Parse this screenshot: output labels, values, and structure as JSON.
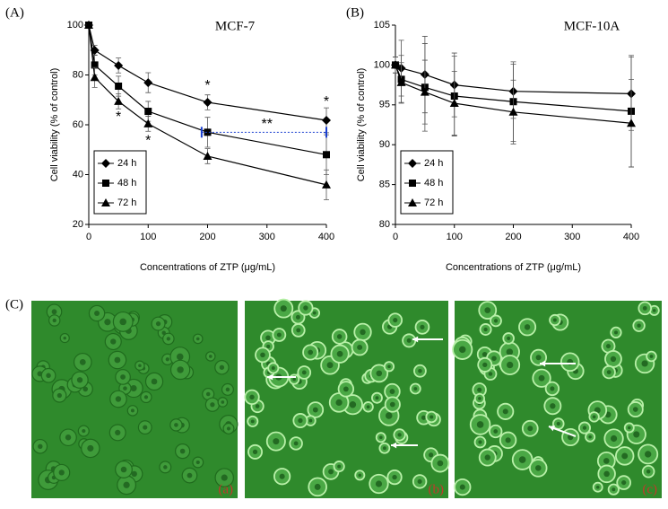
{
  "chart_data": [
    {
      "type": "line",
      "panel": "(A)",
      "title": "MCF-7",
      "x_label": "Concentrations of ZTP (μg/mL)",
      "y_label": "Cell viability (% of control)",
      "x": [
        0,
        10,
        50,
        100,
        200,
        400
      ],
      "xlim": [
        0,
        400
      ],
      "xticks": [
        0,
        100,
        200,
        300,
        400
      ],
      "ylim": [
        20,
        100
      ],
      "yticks": [
        20,
        40,
        60,
        80,
        100
      ],
      "series": [
        {
          "name": "24 h",
          "color": "#000000",
          "marker": "diamond",
          "values": [
            100,
            89.9,
            83.8,
            76.9,
            69,
            61.8
          ],
          "errors": [
            0,
            2,
            3,
            4,
            3,
            5
          ]
        },
        {
          "name": "48 h",
          "color": "#000000",
          "marker": "square",
          "values": [
            100,
            84,
            75.5,
            65.4,
            57,
            48
          ],
          "errors": [
            0,
            4,
            4,
            4,
            6,
            8
          ]
        },
        {
          "name": "72 h",
          "color": "#000000",
          "marker": "triangle",
          "values": [
            100,
            79,
            69.4,
            60.4,
            47.4,
            35.9
          ],
          "errors": [
            0,
            4,
            3,
            3,
            3,
            6
          ]
        }
      ],
      "annotations": [
        "*",
        "*",
        "*",
        "*",
        "**"
      ]
    },
    {
      "type": "line",
      "panel": "(B)",
      "title": "MCF-10A",
      "x_label": "Concentrations of ZTP (μg/mL)",
      "y_label": "Cell viability (% of control)",
      "x": [
        0,
        10,
        50,
        100,
        200,
        400
      ],
      "xlim": [
        0,
        400
      ],
      "xticks": [
        0,
        100,
        200,
        300,
        400
      ],
      "ylim": [
        80,
        105
      ],
      "yticks": [
        80,
        85,
        90,
        95,
        100,
        105
      ],
      "series": [
        {
          "name": "24 h",
          "color": "#000000",
          "marker": "diamond",
          "values": [
            100,
            99.6,
            98.8,
            97.5,
            96.7,
            96.4
          ],
          "errors": [
            1,
            3.5,
            4.8,
            4,
            3.4,
            4.6
          ]
        },
        {
          "name": "48 h",
          "color": "#000000",
          "marker": "square",
          "values": [
            100,
            98.2,
            97.2,
            96.1,
            95.4,
            94.2
          ],
          "errors": [
            1,
            3,
            5.5,
            5,
            5,
            7
          ]
        },
        {
          "name": "72 h",
          "color": "#000000",
          "marker": "triangle",
          "values": [
            100,
            97.8,
            96.6,
            95.2,
            94.1,
            92.7
          ],
          "errors": [
            1,
            2.5,
            4,
            4,
            4,
            5.5
          ]
        }
      ]
    }
  ],
  "images": {
    "panel": "(C)",
    "labels": [
      "(a)",
      "(b)",
      "(c)"
    ]
  }
}
